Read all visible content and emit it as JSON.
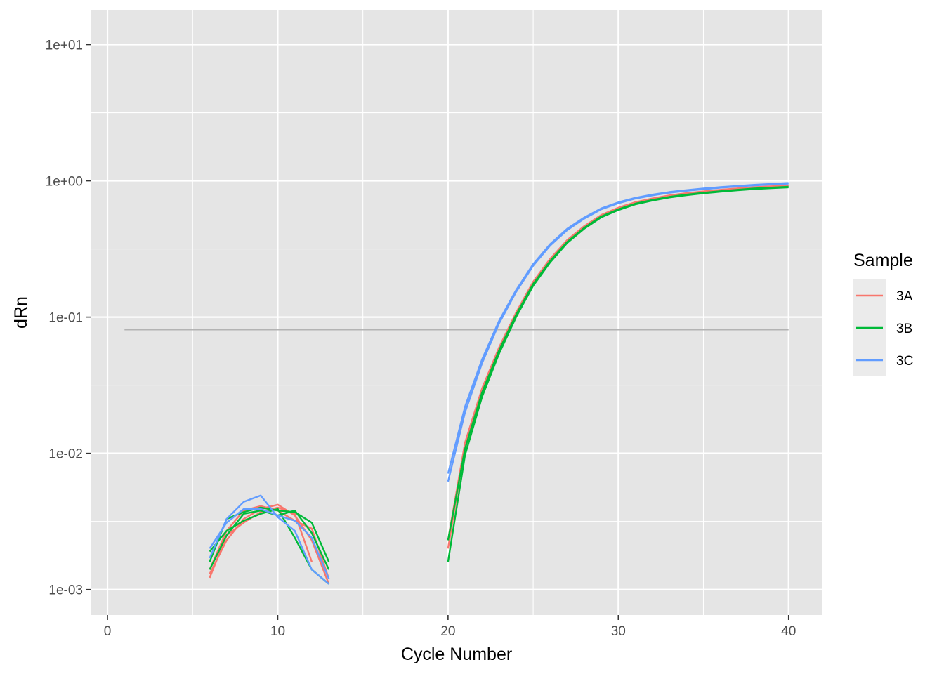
{
  "chart_data": {
    "type": "line",
    "title": "",
    "xlabel": "Cycle Number",
    "ylabel": "dRn",
    "xlim": [
      -0.95,
      41.95
    ],
    "ylim": [
      0.00065,
      18
    ],
    "y_scale": "log10",
    "x_ticks": [
      0,
      10,
      20,
      30,
      40
    ],
    "x_tick_labels": [
      "0",
      "10",
      "20",
      "30",
      "40"
    ],
    "y_ticks": [
      0.001,
      0.01,
      0.1,
      1,
      10
    ],
    "y_tick_labels": [
      "1e-03",
      "1e-02",
      "1e-01",
      "1e+00",
      "1e+01"
    ],
    "grid": true,
    "legend": {
      "title": "Sample",
      "position": "right",
      "entries": [
        "3A",
        "3B",
        "3C"
      ]
    },
    "colors": {
      "3A": "#F8766D",
      "3B": "#00BA38",
      "3C": "#619CFF",
      "threshold": "#b3b3b3",
      "panel": "#e5e5e5",
      "grid": "#ffffff"
    },
    "threshold": {
      "x": [
        1,
        40
      ],
      "y": 0.081
    },
    "series": [
      {
        "name": "3A",
        "x": [
          6,
          7,
          8,
          9,
          10,
          11,
          12
        ],
        "y": [
          0.00122,
          0.0025,
          0.0031,
          0.0037,
          0.004,
          0.0036,
          0.0016
        ]
      },
      {
        "name": "3A",
        "x": [
          6,
          7,
          8,
          9,
          10,
          11,
          12,
          13
        ],
        "y": [
          0.0014,
          0.0027,
          0.0038,
          0.0041,
          0.0038,
          0.0032,
          0.0028,
          0.0012
        ]
      },
      {
        "name": "3A",
        "x": [
          6,
          7,
          8,
          9,
          10,
          11,
          12,
          13
        ],
        "y": [
          0.0013,
          0.0023,
          0.0033,
          0.0039,
          0.0042,
          0.0035,
          0.0023,
          0.0011
        ]
      },
      {
        "name": "3B",
        "x": [
          6,
          7,
          8,
          9,
          10,
          11,
          12,
          13
        ],
        "y": [
          0.0016,
          0.0033,
          0.0037,
          0.004,
          0.0038,
          0.0037,
          0.0031,
          0.0016
        ]
      },
      {
        "name": "3B",
        "x": [
          6,
          7,
          8,
          9,
          10,
          11,
          12,
          13
        ],
        "y": [
          0.0019,
          0.0027,
          0.0032,
          0.0036,
          0.0039,
          0.0024,
          0.0014,
          0.0011
        ]
      },
      {
        "name": "3B",
        "x": [
          6,
          7,
          8,
          9,
          10,
          11,
          12,
          13
        ],
        "y": [
          0.0014,
          0.0025,
          0.0036,
          0.0038,
          0.0035,
          0.0038,
          0.0026,
          0.0014
        ]
      },
      {
        "name": "3C",
        "x": [
          6,
          7,
          8,
          9,
          10,
          11,
          12,
          13
        ],
        "y": [
          0.0017,
          0.0033,
          0.0044,
          0.0049,
          0.0034,
          0.0027,
          0.0014,
          0.0011
        ]
      },
      {
        "name": "3C",
        "x": [
          6,
          7,
          8,
          9,
          10,
          11,
          12,
          13
        ],
        "y": [
          0.002,
          0.0031,
          0.0039,
          0.0039,
          0.0035,
          0.0032,
          0.0024,
          0.0012
        ]
      },
      {
        "name": "3A",
        "x": [
          20,
          21,
          22,
          23,
          24,
          25,
          26,
          27,
          28,
          29,
          30,
          31,
          32,
          33,
          34,
          35,
          36,
          37,
          38,
          39,
          40
        ],
        "y": [
          0.002,
          0.0115,
          0.029,
          0.058,
          0.105,
          0.178,
          0.262,
          0.362,
          0.458,
          0.555,
          0.625,
          0.69,
          0.735,
          0.775,
          0.805,
          0.83,
          0.853,
          0.873,
          0.892,
          0.905,
          0.92
        ]
      },
      {
        "name": "3A",
        "x": [
          20,
          21,
          22,
          23,
          24,
          25,
          26,
          27,
          28,
          29,
          30,
          31,
          32,
          33,
          34,
          35,
          36,
          37,
          38,
          39,
          40
        ],
        "y": [
          0.0023,
          0.012,
          0.03,
          0.06,
          0.108,
          0.182,
          0.268,
          0.368,
          0.465,
          0.562,
          0.635,
          0.697,
          0.742,
          0.782,
          0.812,
          0.837,
          0.86,
          0.88,
          0.898,
          0.912,
          0.928
        ]
      },
      {
        "name": "3B",
        "x": [
          20,
          21,
          22,
          23,
          24,
          25,
          26,
          27,
          28,
          29,
          30,
          31,
          32,
          33,
          34,
          35,
          36,
          37,
          38,
          39,
          40
        ],
        "y": [
          0.0016,
          0.0097,
          0.026,
          0.054,
          0.1,
          0.17,
          0.252,
          0.35,
          0.445,
          0.54,
          0.61,
          0.672,
          0.716,
          0.755,
          0.785,
          0.81,
          0.832,
          0.852,
          0.87,
          0.884,
          0.895
        ]
      },
      {
        "name": "3B",
        "x": [
          20,
          21,
          22,
          23,
          24,
          25,
          26,
          27,
          28,
          29,
          30,
          31,
          32,
          33,
          34,
          35,
          36,
          37,
          38,
          39,
          40
        ],
        "y": [
          0.0023,
          0.0108,
          0.028,
          0.057,
          0.104,
          0.175,
          0.258,
          0.356,
          0.452,
          0.548,
          0.618,
          0.68,
          0.724,
          0.762,
          0.792,
          0.817,
          0.84,
          0.86,
          0.878,
          0.892,
          0.905
        ]
      },
      {
        "name": "3C",
        "x": [
          20,
          21,
          22,
          23,
          24,
          25,
          26,
          27,
          28,
          29,
          30,
          31,
          32,
          33,
          34,
          35,
          36,
          37,
          38,
          39,
          40
        ],
        "y": [
          0.0062,
          0.02,
          0.046,
          0.09,
          0.153,
          0.238,
          0.335,
          0.435,
          0.528,
          0.618,
          0.685,
          0.74,
          0.782,
          0.818,
          0.845,
          0.868,
          0.89,
          0.908,
          0.925,
          0.94,
          0.955
        ]
      },
      {
        "name": "3C",
        "x": [
          20,
          21,
          22,
          23,
          24,
          25,
          26,
          27,
          28,
          29,
          30,
          31,
          32,
          33,
          34,
          35,
          36,
          37,
          38,
          39,
          40
        ],
        "y": [
          0.0071,
          0.022,
          0.049,
          0.094,
          0.158,
          0.245,
          0.343,
          0.445,
          0.538,
          0.628,
          0.695,
          0.75,
          0.792,
          0.828,
          0.855,
          0.878,
          0.9,
          0.918,
          0.935,
          0.95,
          0.965
        ]
      }
    ]
  }
}
